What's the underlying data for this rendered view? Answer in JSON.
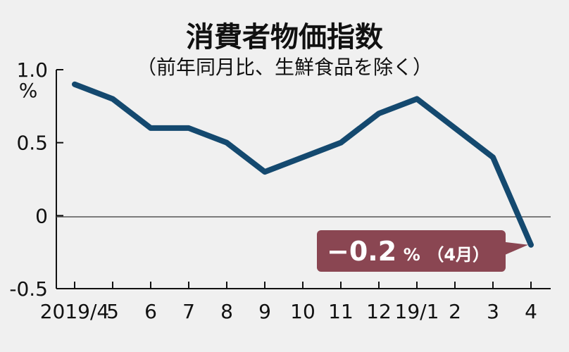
{
  "chart_data": {
    "type": "line",
    "title": "消費者物価指数",
    "subtitle": "（前年同月比、生鮮食品を除く）",
    "y_unit": "%",
    "x": [
      "2019/4",
      "5",
      "6",
      "7",
      "8",
      "9",
      "10",
      "11",
      "12",
      "19/1",
      "2",
      "3",
      "4"
    ],
    "series": [
      {
        "values": [
          0.9,
          0.8,
          0.6,
          0.6,
          0.5,
          0.3,
          0.4,
          0.5,
          0.7,
          0.8,
          0.6,
          0.4,
          -0.2
        ]
      }
    ],
    "ylim": [
      -0.5,
      1.0
    ],
    "y_ticks": [
      1.0,
      0.5,
      0,
      -0.5
    ],
    "y_tick_labels": [
      "1.0",
      "0.5",
      "0",
      "-0.5"
    ],
    "zero_line": true,
    "grid": false,
    "annotation": {
      "value_text": "−0.2",
      "unit_text": "%",
      "month_text": "（4月）",
      "target_index": 12
    },
    "colors": {
      "background": "#f0f0f0",
      "line": "#14496f",
      "axis": "#111111",
      "callout": "#8a4652"
    }
  }
}
